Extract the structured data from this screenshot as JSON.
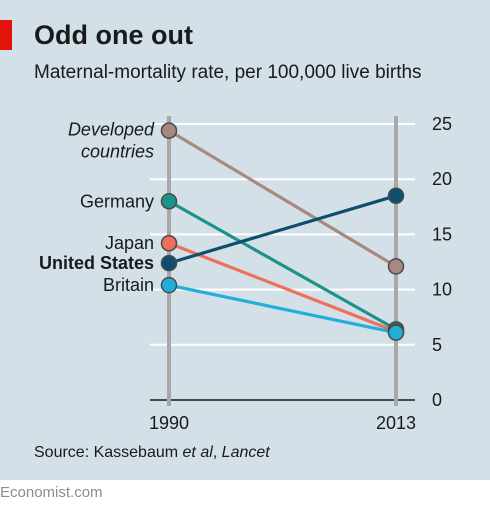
{
  "header": {
    "title": "Odd one out",
    "subtitle": "Maternal-mortality rate, per 100,000 live births"
  },
  "source": {
    "prefix": "Source: Kassebaum ",
    "etal": "et al",
    "sep": ", ",
    "journal": "Lancet"
  },
  "footer": {
    "brand": "Economist.com"
  },
  "colors": {
    "panel": "#d3e0e7",
    "accent": "#e3120b"
  },
  "chart_data": {
    "type": "line",
    "x": [
      "1990",
      "2013"
    ],
    "ylim": [
      0,
      25
    ],
    "yticks": [
      0,
      5,
      10,
      15,
      20,
      25
    ],
    "grid": true,
    "series": [
      {
        "name": "Developed countries",
        "label_lines": [
          "Developed",
          "countries"
        ],
        "values": [
          24.4,
          12.1
        ],
        "color": "#a88880",
        "italic": true,
        "bold": false
      },
      {
        "name": "Germany",
        "label_lines": [
          "Germany"
        ],
        "values": [
          18.0,
          6.4
        ],
        "color": "#1b928a",
        "italic": false,
        "bold": false
      },
      {
        "name": "Japan",
        "label_lines": [
          "Japan"
        ],
        "values": [
          14.2,
          6.2
        ],
        "color": "#ee6f5c",
        "italic": false,
        "bold": false
      },
      {
        "name": "United States",
        "label_lines": [
          "United States"
        ],
        "values": [
          12.4,
          18.5
        ],
        "color": "#0e4f6e",
        "italic": false,
        "bold": true
      },
      {
        "name": "Britain",
        "label_lines": [
          "Britain"
        ],
        "values": [
          10.4,
          6.1
        ],
        "color": "#21afd9",
        "italic": false,
        "bold": false
      }
    ]
  }
}
